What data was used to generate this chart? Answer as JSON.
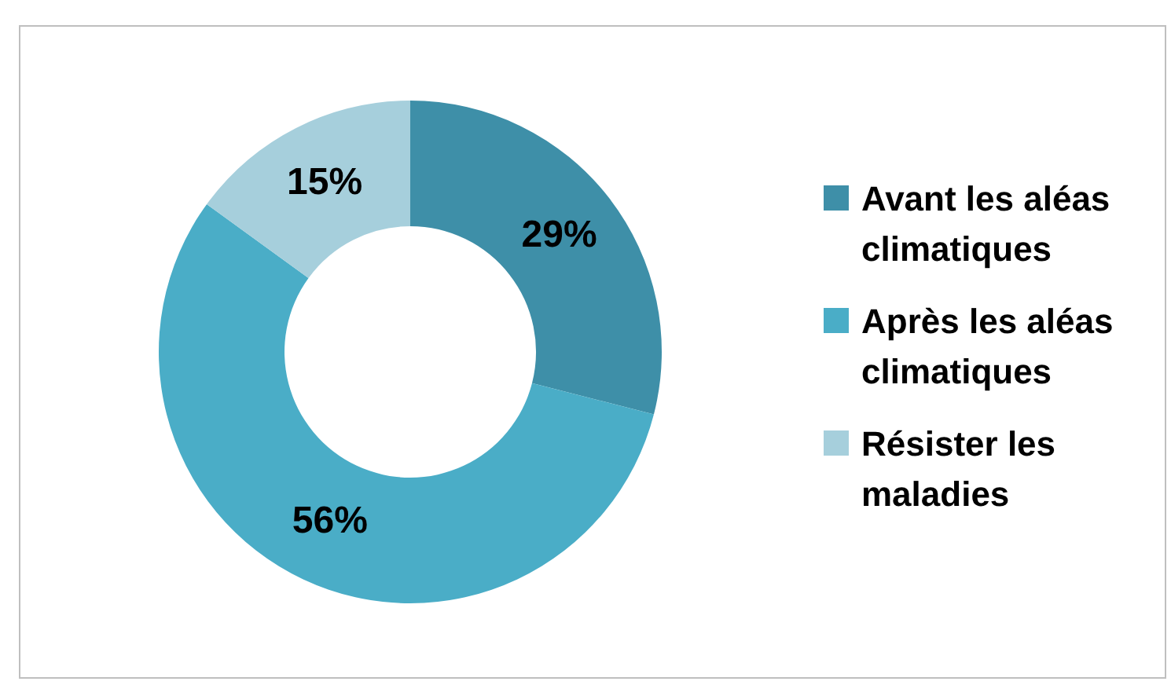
{
  "chart_data": {
    "type": "donut",
    "categories": [
      "Avant les aléas climatiques",
      "Après les aléas climatiques",
      "Résister les maladies"
    ],
    "values": [
      29,
      56,
      15
    ],
    "colors": [
      "#3e8fa8",
      "#4aadc7",
      "#a6cfdc"
    ],
    "value_labels": [
      "29%",
      "56%",
      "15%"
    ],
    "legend": "right"
  }
}
